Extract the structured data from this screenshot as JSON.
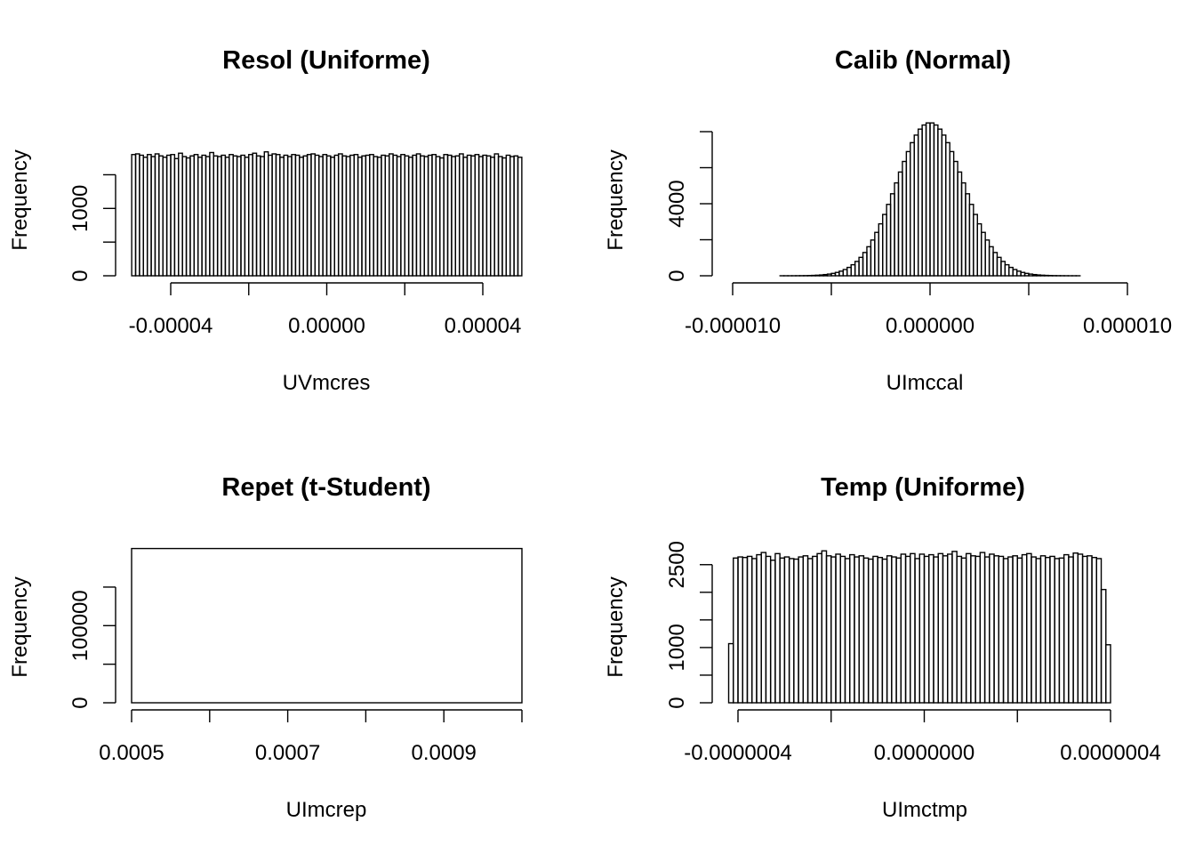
{
  "chart_data": [
    {
      "type": "bar",
      "subtype": "histogram",
      "title": "Resol (Uniforme)",
      "xlabel": "UVmcres",
      "ylabel": "Frequency",
      "distribution": "uniform",
      "xlim": [
        -5e-05,
        5e-05
      ],
      "ylim": [
        0,
        1900
      ],
      "x_ticks": [
        "-0.00004",
        "0.00000",
        "0.00004"
      ],
      "x_tick_values": [
        -4e-05,
        -2e-05,
        0,
        2e-05,
        4e-05
      ],
      "y_ticks": [
        "0",
        "1000"
      ],
      "y_tick_values": [
        0,
        500,
        1000,
        1500
      ],
      "bin_width": 1e-06,
      "bin_start": -5e-05,
      "counts": [
        1800,
        1810,
        1790,
        1760,
        1800,
        1770,
        1810,
        1780,
        1760,
        1790,
        1800,
        1740,
        1820,
        1770,
        1750,
        1780,
        1800,
        1760,
        1790,
        1770,
        1830,
        1780,
        1770,
        1790,
        1760,
        1800,
        1780,
        1770,
        1790,
        1760,
        1800,
        1820,
        1780,
        1770,
        1840,
        1790,
        1810,
        1800,
        1760,
        1790,
        1770,
        1800,
        1790,
        1760,
        1780,
        1800,
        1810,
        1790,
        1770,
        1800,
        1780,
        1760,
        1790,
        1810,
        1780,
        1770,
        1790,
        1800,
        1760,
        1780,
        1790,
        1800,
        1770,
        1760,
        1790,
        1780,
        1810,
        1790,
        1770,
        1800,
        1780,
        1760,
        1790,
        1810,
        1780,
        1770,
        1790,
        1800,
        1770,
        1750,
        1800,
        1790,
        1770,
        1780,
        1810,
        1760,
        1790,
        1780,
        1800,
        1770,
        1790,
        1780,
        1760,
        1810,
        1770,
        1750,
        1790,
        1770,
        1780,
        1760
      ]
    },
    {
      "type": "bar",
      "subtype": "histogram",
      "title": "Calib (Normal)",
      "xlabel": "UImccal",
      "ylabel": "Frequency",
      "distribution": "normal",
      "xlim": [
        -1e-05,
        1e-05
      ],
      "ylim": [
        0,
        8600
      ],
      "x_ticks": [
        "-0.000010",
        "0.000000",
        "0.000010"
      ],
      "x_tick_values": [
        -1e-05,
        -5e-06,
        0,
        5e-06,
        1e-05
      ],
      "y_ticks": [
        "0",
        "4000"
      ],
      "y_tick_values": [
        0,
        2000,
        4000,
        6000,
        8000
      ],
      "bin_width": 2e-07,
      "bin_start": -1e-05,
      "normal": {
        "mean": 0,
        "sd": 1.7e-06,
        "peak": 8500
      }
    },
    {
      "type": "bar",
      "subtype": "histogram",
      "title": "Repet (t-Student)",
      "xlabel": "UImcrep",
      "ylabel": "Frequency",
      "distribution": "t-student",
      "xlim": [
        0.0005,
        0.001
      ],
      "ylim": [
        0,
        200000
      ],
      "x_ticks": [
        "0.0005",
        "0.0007",
        "0.0009"
      ],
      "x_tick_values": [
        0.0005,
        0.0006,
        0.0007,
        0.0008,
        0.0009,
        0.001
      ],
      "y_ticks": [
        "0",
        "100000"
      ],
      "y_tick_values": [
        0,
        50000,
        100000,
        150000
      ],
      "bin_width": 0.0005,
      "bin_start": 0.0005,
      "counts": [
        200000
      ]
    },
    {
      "type": "bar",
      "subtype": "histogram",
      "title": "Temp (Uniforme)",
      "xlabel": "UImctmp",
      "ylabel": "Frequency",
      "distribution": "uniform",
      "xlim": [
        -4.2e-07,
        4.2e-07
      ],
      "ylim": [
        0,
        2800
      ],
      "x_ticks": [
        "-0.0000004",
        "0.0000000",
        "0.0000004"
      ],
      "x_tick_values": [
        -4e-07,
        -2e-07,
        0,
        2e-07,
        4e-07
      ],
      "y_ticks": [
        "0",
        "1000",
        "2500"
      ],
      "y_tick_values": [
        0,
        500,
        1000,
        1500,
        2000,
        2500
      ],
      "bin_width": 1e-08,
      "bin_start": -4.2e-07,
      "counts": [
        1070,
        2620,
        2640,
        2630,
        2650,
        2610,
        2680,
        2720,
        2650,
        2580,
        2700,
        2620,
        2640,
        2610,
        2600,
        2640,
        2660,
        2610,
        2650,
        2700,
        2750,
        2660,
        2640,
        2690,
        2650,
        2610,
        2680,
        2640,
        2660,
        2620,
        2600,
        2650,
        2630,
        2600,
        2660,
        2640,
        2620,
        2690,
        2650,
        2700,
        2610,
        2690,
        2650,
        2680,
        2640,
        2700,
        2660,
        2690,
        2740,
        2650,
        2620,
        2700,
        2660,
        2650,
        2720,
        2640,
        2690,
        2660,
        2650,
        2610,
        2640,
        2660,
        2620,
        2680,
        2700,
        2640,
        2610,
        2660,
        2630,
        2650,
        2610,
        2620,
        2680,
        2640,
        2710,
        2690,
        2650,
        2660,
        2630,
        2610,
        2050,
        1050
      ]
    }
  ]
}
